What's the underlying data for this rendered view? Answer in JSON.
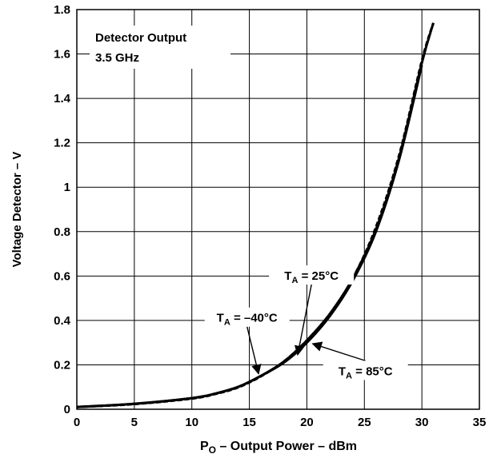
{
  "chart_data": {
    "type": "line",
    "title": "Detector Output",
    "subtitle": "3.5 GHz",
    "xlabel": {
      "main": "P",
      "sub": "O",
      "rest": " – Output Power – dBm"
    },
    "ylabel": "Voltage Detector – V",
    "xlim": [
      0,
      35
    ],
    "ylim": [
      0,
      1.8
    ],
    "xticks": [
      0,
      5,
      10,
      15,
      20,
      25,
      30,
      35
    ],
    "xtick_labels": [
      "0",
      "5",
      "10",
      "15",
      "20",
      "25",
      "30",
      "35"
    ],
    "yticks": [
      0,
      0.2,
      0.4,
      0.6,
      0.8,
      1,
      1.2,
      1.4,
      1.6,
      1.8
    ],
    "ytick_labels": [
      "0",
      "0.2",
      "0.4",
      "0.6",
      "0.8",
      "1",
      "1.2",
      "1.4",
      "1.6",
      "1.8"
    ],
    "grid": true,
    "series": [
      {
        "name": {
          "main": "T",
          "sub": "A",
          "rest": " = –40°C"
        },
        "style": "solid",
        "x": [
          0,
          5,
          10,
          12,
          14,
          16,
          18,
          20,
          22,
          24,
          26,
          28,
          30
        ],
        "y": [
          0.01,
          0.025,
          0.05,
          0.07,
          0.1,
          0.15,
          0.21,
          0.3,
          0.42,
          0.58,
          0.8,
          1.12,
          1.55
        ]
      },
      {
        "name": {
          "main": "T",
          "sub": "A",
          "rest": " = 25°C"
        },
        "style": "solid",
        "x": [
          0,
          5,
          10,
          12,
          14,
          16,
          18,
          20,
          22,
          24,
          26,
          28,
          30,
          31
        ],
        "y": [
          0.01,
          0.024,
          0.05,
          0.07,
          0.1,
          0.15,
          0.215,
          0.31,
          0.43,
          0.59,
          0.81,
          1.13,
          1.56,
          1.74
        ]
      },
      {
        "name": {
          "main": "T",
          "sub": "A",
          "rest": " = 85°C"
        },
        "style": "dashed",
        "x": [
          0,
          5,
          10,
          12,
          14,
          16,
          18,
          20,
          22,
          24,
          26,
          28,
          30,
          31
        ],
        "y": [
          0.01,
          0.023,
          0.048,
          0.068,
          0.098,
          0.148,
          0.215,
          0.31,
          0.43,
          0.59,
          0.82,
          1.14,
          1.57,
          1.74
        ]
      }
    ],
    "annotations": [
      {
        "series": 0,
        "label_x": 14.8,
        "label_y": 0.415,
        "arrow_to": [
          15.8,
          0.16
        ]
      },
      {
        "series": 1,
        "label_x": 20.4,
        "label_y": 0.605,
        "arrow_to": [
          19.2,
          0.245
        ]
      },
      {
        "series": 2,
        "label_x": 25.1,
        "label_y": 0.175,
        "arrow_to": [
          20.5,
          0.295
        ]
      }
    ]
  }
}
